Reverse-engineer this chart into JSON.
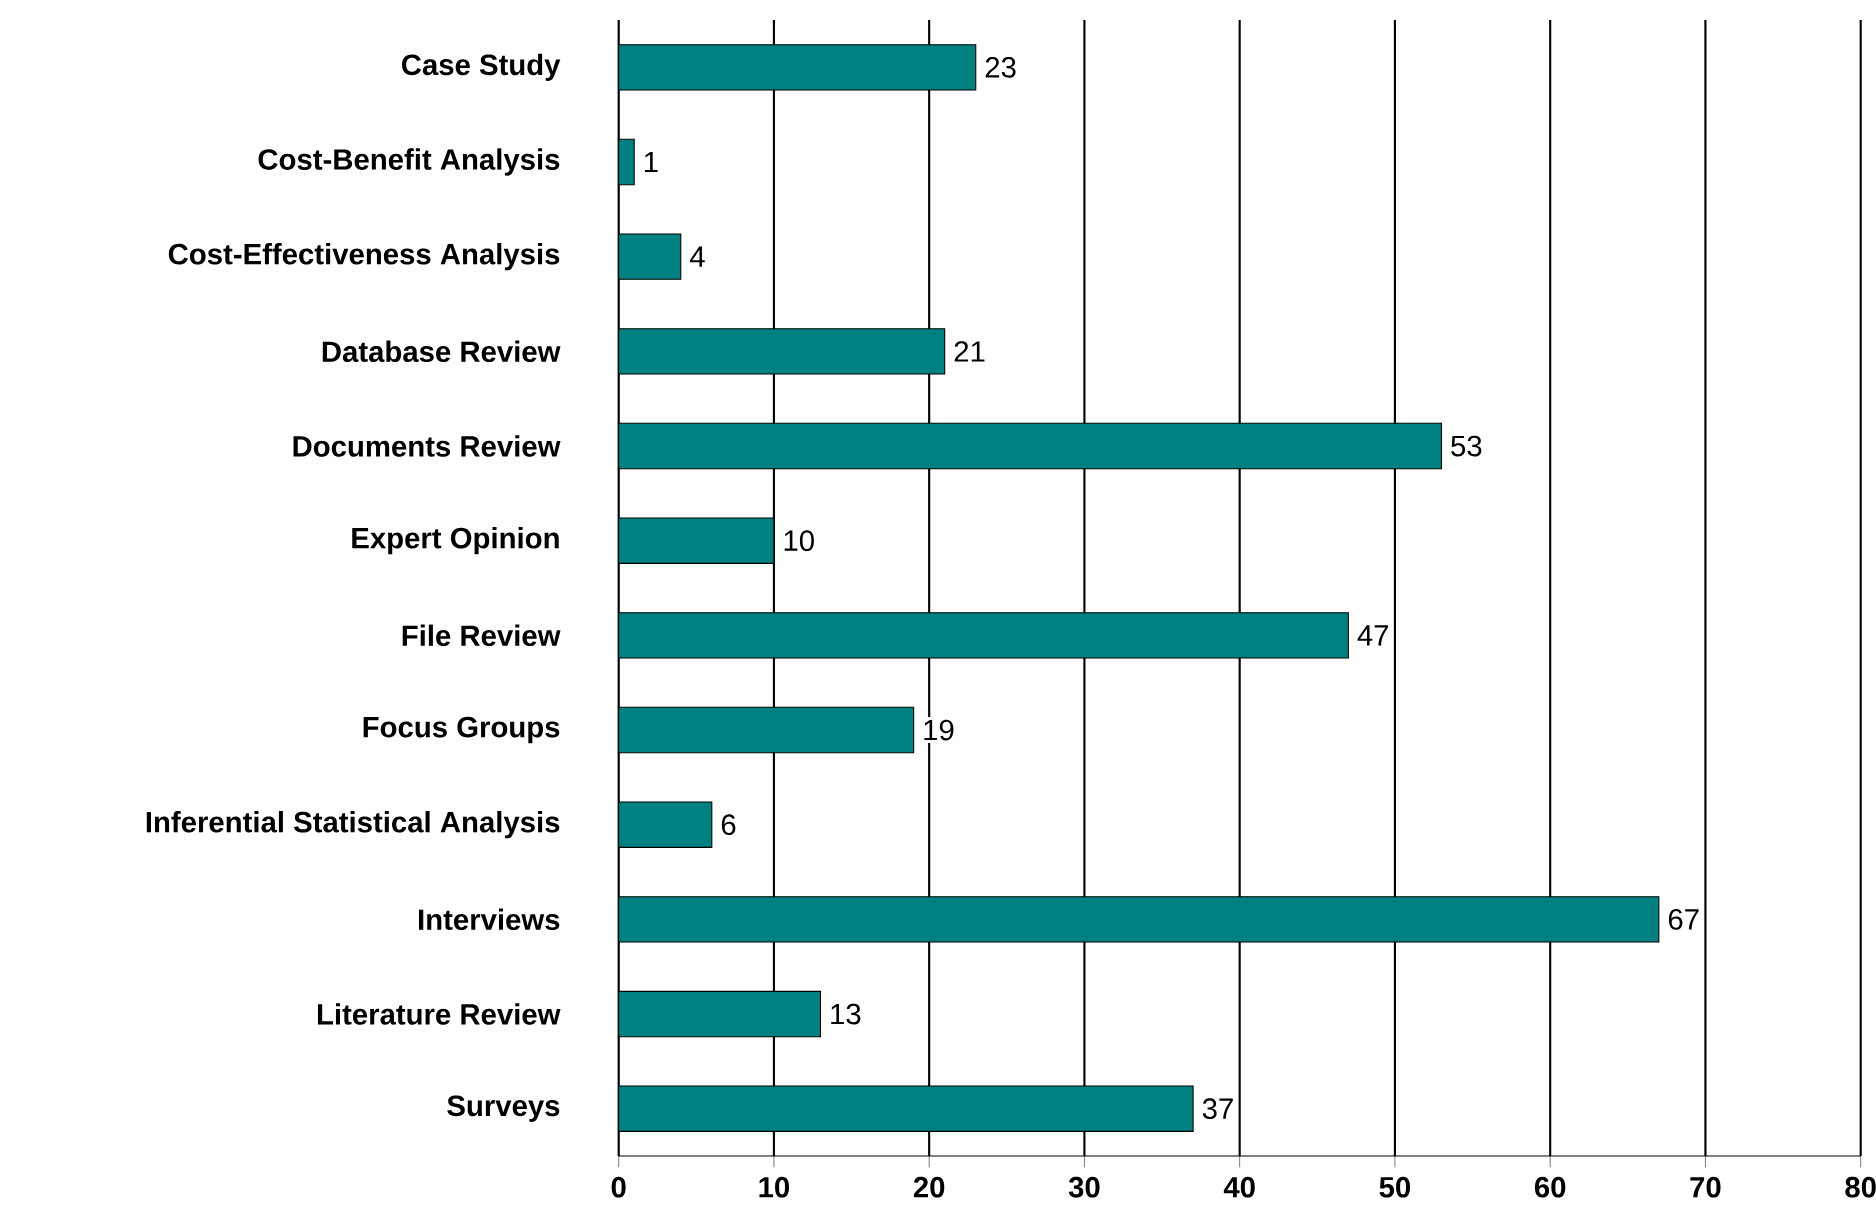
{
  "chart_data": {
    "type": "bar",
    "orientation": "horizontal",
    "categories": [
      "Case Study",
      "Cost-Benefit Analysis",
      "Cost-Effectiveness Analysis",
      "Database Review",
      "Documents Review",
      "Expert Opinion",
      "File Review",
      "Focus Groups",
      "Inferential Statistical Analysis",
      "Interviews",
      "Literature Review",
      "Surveys"
    ],
    "values": [
      23,
      1,
      4,
      21,
      53,
      10,
      47,
      19,
      6,
      67,
      13,
      37
    ],
    "color": "#008080",
    "xlim": [
      0,
      80
    ],
    "xticks": [
      0,
      10,
      20,
      30,
      40,
      50,
      60,
      70,
      80
    ],
    "grid": "x",
    "data_labels": true
  }
}
